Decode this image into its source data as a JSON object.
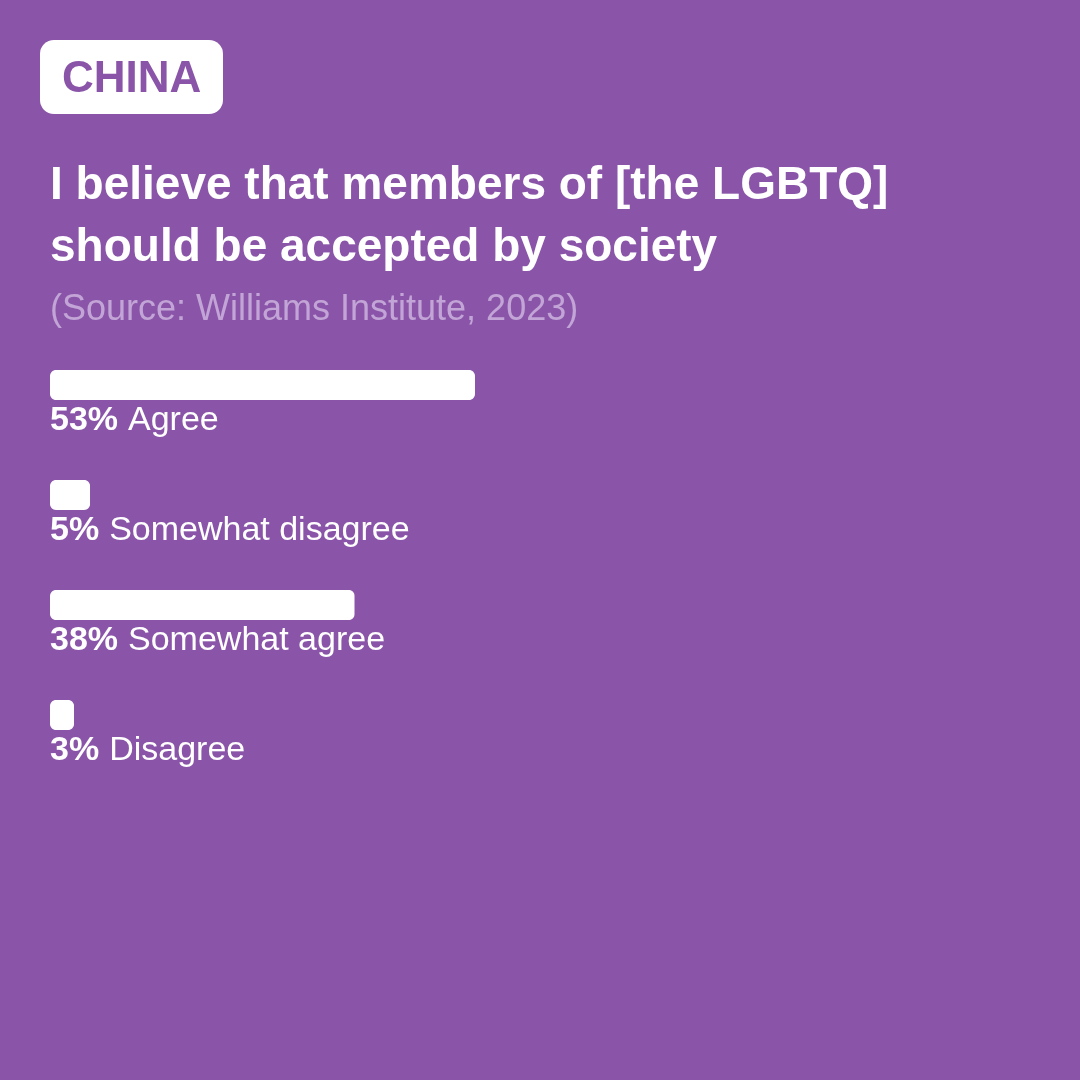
{
  "chart_data": {
    "type": "bar",
    "orientation": "horizontal",
    "title": "I believe that members of [the LGBTQ] should be accepted by society",
    "annotations": [
      "CHINA",
      "(Source: Williams Institute, 2023)"
    ],
    "categories": [
      "Agree",
      "Somewhat disagree",
      "Somewhat agree",
      "Disagree"
    ],
    "values": [
      53,
      5,
      38,
      3
    ],
    "value_labels": [
      "53%",
      "5%",
      "38%",
      "3%"
    ],
    "color": "#ffffff"
  }
}
